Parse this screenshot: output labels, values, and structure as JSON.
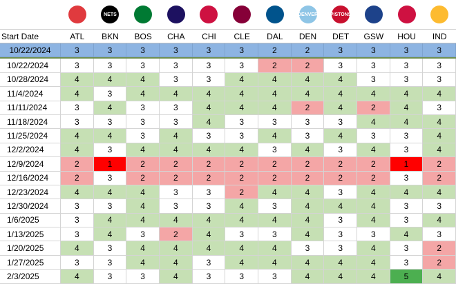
{
  "header": {
    "start_date_label": "Start Date",
    "teams": [
      "ATL",
      "BKN",
      "BOS",
      "CHA",
      "CHI",
      "CLE",
      "DAL",
      "DEN",
      "DET",
      "GSW",
      "HOU",
      "IND"
    ]
  },
  "logos": [
    {
      "team": "ATL",
      "icon": "hawks-logo",
      "color": "#e03a3e",
      "text": ""
    },
    {
      "team": "BKN",
      "icon": "nets-logo",
      "color": "#000000",
      "text": "NETS"
    },
    {
      "team": "BOS",
      "icon": "celtics-logo",
      "color": "#007a33",
      "text": ""
    },
    {
      "team": "CHA",
      "icon": "hornets-logo",
      "color": "#1d1160",
      "text": ""
    },
    {
      "team": "CHI",
      "icon": "bulls-logo",
      "color": "#ce1141",
      "text": ""
    },
    {
      "team": "CLE",
      "icon": "cavaliers-logo",
      "color": "#860038",
      "text": ""
    },
    {
      "team": "DAL",
      "icon": "mavericks-logo",
      "color": "#00538c",
      "text": ""
    },
    {
      "team": "DEN",
      "icon": "nuggets-logo",
      "color": "#8ec5e6",
      "text": "DENVER"
    },
    {
      "team": "DET",
      "icon": "pistons-logo",
      "color": "#c8102e",
      "text": "PISTONS"
    },
    {
      "team": "GSW",
      "icon": "warriors-logo",
      "color": "#1d428a",
      "text": ""
    },
    {
      "team": "HOU",
      "icon": "rockets-logo",
      "color": "#ce1141",
      "text": ""
    },
    {
      "team": "IND",
      "icon": "pacers-logo",
      "color": "#fdbb30",
      "text": ""
    }
  ],
  "colors": {
    "green": "#c6e0b4",
    "white": "#ffffff",
    "pink": "#f4a6a6",
    "red": "#ff0000",
    "dark_green": "#4caf50",
    "selected": "#8db4e2"
  },
  "selected_row": {
    "date": "10/22/2024",
    "values": [
      "3",
      "3",
      "3",
      "3",
      "3",
      "3",
      "2",
      "2",
      "3",
      "3",
      "3",
      "3"
    ]
  },
  "rows": [
    {
      "date": "10/22/2024",
      "values": [
        "3",
        "3",
        "3",
        "3",
        "3",
        "3",
        "2",
        "2",
        "3",
        "3",
        "3",
        "3"
      ],
      "fills": [
        "white",
        "white",
        "white",
        "white",
        "white",
        "white",
        "pink",
        "pink",
        "white",
        "white",
        "white",
        "white"
      ]
    },
    {
      "date": "10/28/2024",
      "values": [
        "4",
        "4",
        "4",
        "3",
        "3",
        "4",
        "4",
        "4",
        "4",
        "3",
        "3",
        "3"
      ],
      "fills": [
        "green",
        "green",
        "green",
        "white",
        "white",
        "green",
        "green",
        "green",
        "green",
        "white",
        "white",
        "white"
      ]
    },
    {
      "date": "11/4/2024",
      "values": [
        "4",
        "3",
        "4",
        "4",
        "4",
        "4",
        "4",
        "4",
        "4",
        "4",
        "4",
        "4"
      ],
      "fills": [
        "green",
        "white",
        "green",
        "green",
        "green",
        "green",
        "green",
        "green",
        "green",
        "green",
        "green",
        "green"
      ]
    },
    {
      "date": "11/11/2024",
      "values": [
        "3",
        "4",
        "3",
        "3",
        "4",
        "4",
        "4",
        "2",
        "4",
        "2",
        "4",
        "3"
      ],
      "fills": [
        "white",
        "green",
        "white",
        "white",
        "green",
        "green",
        "green",
        "pink",
        "green",
        "pink",
        "green",
        "white"
      ]
    },
    {
      "date": "11/18/2024",
      "values": [
        "3",
        "3",
        "3",
        "3",
        "4",
        "3",
        "3",
        "3",
        "3",
        "4",
        "4",
        "4"
      ],
      "fills": [
        "white",
        "white",
        "white",
        "white",
        "green",
        "white",
        "white",
        "white",
        "white",
        "green",
        "green",
        "green"
      ]
    },
    {
      "date": "11/25/2024",
      "values": [
        "4",
        "4",
        "3",
        "4",
        "3",
        "3",
        "4",
        "3",
        "4",
        "3",
        "3",
        "4"
      ],
      "fills": [
        "green",
        "green",
        "white",
        "green",
        "white",
        "white",
        "green",
        "white",
        "green",
        "white",
        "white",
        "green"
      ]
    },
    {
      "date": "12/2/2024",
      "values": [
        "4",
        "3",
        "4",
        "4",
        "4",
        "4",
        "3",
        "4",
        "3",
        "4",
        "3",
        "4"
      ],
      "fills": [
        "green",
        "white",
        "green",
        "green",
        "green",
        "green",
        "white",
        "green",
        "white",
        "green",
        "white",
        "green"
      ]
    },
    {
      "date": "12/9/2024",
      "values": [
        "2",
        "1",
        "2",
        "2",
        "2",
        "2",
        "2",
        "2",
        "2",
        "2",
        "1",
        "2"
      ],
      "fills": [
        "pink",
        "red",
        "pink",
        "pink",
        "pink",
        "pink",
        "pink",
        "pink",
        "pink",
        "pink",
        "red",
        "pink"
      ]
    },
    {
      "date": "12/16/2024",
      "values": [
        "2",
        "3",
        "2",
        "2",
        "2",
        "2",
        "2",
        "2",
        "2",
        "2",
        "3",
        "2"
      ],
      "fills": [
        "pink",
        "white",
        "pink",
        "pink",
        "pink",
        "pink",
        "pink",
        "pink",
        "pink",
        "pink",
        "white",
        "pink"
      ]
    },
    {
      "date": "12/23/2024",
      "values": [
        "4",
        "4",
        "4",
        "3",
        "3",
        "2",
        "4",
        "4",
        "3",
        "4",
        "4",
        "4"
      ],
      "fills": [
        "green",
        "green",
        "green",
        "white",
        "white",
        "pink",
        "green",
        "green",
        "white",
        "green",
        "green",
        "green"
      ]
    },
    {
      "date": "12/30/2024",
      "values": [
        "3",
        "3",
        "4",
        "3",
        "3",
        "4",
        "3",
        "4",
        "4",
        "4",
        "3",
        "3"
      ],
      "fills": [
        "white",
        "white",
        "green",
        "white",
        "white",
        "green",
        "white",
        "green",
        "green",
        "green",
        "white",
        "white"
      ]
    },
    {
      "date": "1/6/2025",
      "values": [
        "3",
        "4",
        "4",
        "4",
        "4",
        "4",
        "4",
        "4",
        "3",
        "4",
        "3",
        "4"
      ],
      "fills": [
        "white",
        "green",
        "green",
        "green",
        "green",
        "green",
        "green",
        "green",
        "white",
        "green",
        "white",
        "green"
      ]
    },
    {
      "date": "1/13/2025",
      "values": [
        "3",
        "4",
        "3",
        "2",
        "4",
        "3",
        "3",
        "4",
        "3",
        "3",
        "4",
        "3"
      ],
      "fills": [
        "white",
        "green",
        "white",
        "pink",
        "green",
        "white",
        "white",
        "green",
        "white",
        "white",
        "green",
        "white"
      ]
    },
    {
      "date": "1/20/2025",
      "values": [
        "4",
        "3",
        "4",
        "4",
        "4",
        "4",
        "4",
        "3",
        "3",
        "4",
        "3",
        "2"
      ],
      "fills": [
        "green",
        "white",
        "green",
        "green",
        "green",
        "green",
        "green",
        "white",
        "white",
        "green",
        "white",
        "pink"
      ]
    },
    {
      "date": "1/27/2025",
      "values": [
        "3",
        "3",
        "4",
        "4",
        "3",
        "4",
        "4",
        "4",
        "4",
        "4",
        "3",
        "2"
      ],
      "fills": [
        "white",
        "white",
        "green",
        "green",
        "white",
        "green",
        "green",
        "green",
        "green",
        "green",
        "white",
        "pink"
      ]
    },
    {
      "date": "2/3/2025",
      "values": [
        "4",
        "3",
        "3",
        "4",
        "3",
        "3",
        "3",
        "4",
        "4",
        "4",
        "5",
        "4"
      ],
      "fills": [
        "green",
        "white",
        "white",
        "green",
        "white",
        "white",
        "white",
        "green",
        "green",
        "green",
        "dark_green",
        "green"
      ]
    }
  ]
}
